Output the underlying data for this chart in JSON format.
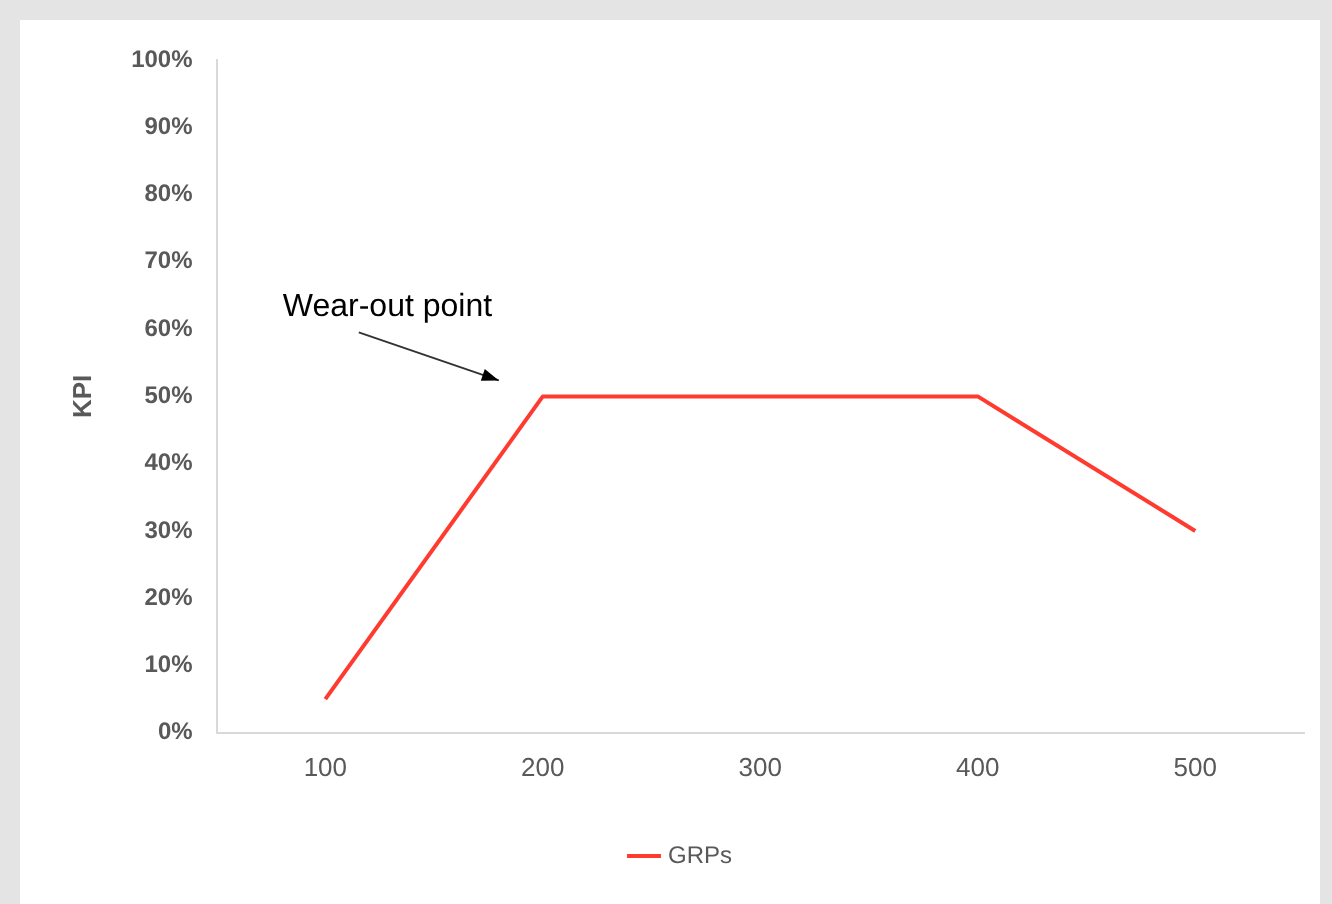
{
  "chart_data": {
    "type": "line",
    "ylabel": "KPI",
    "categories": [
      "100",
      "200",
      "300",
      "400",
      "500"
    ],
    "series": [
      {
        "name": "GRPs",
        "color": "#ff3b30",
        "values": [
          5,
          50,
          50,
          50,
          30
        ]
      }
    ],
    "ylim": [
      0,
      100
    ],
    "yticks": [
      {
        "value": 0,
        "label": "0%"
      },
      {
        "value": 10,
        "label": "10%"
      },
      {
        "value": 20,
        "label": "20%"
      },
      {
        "value": 30,
        "label": "30%"
      },
      {
        "value": 40,
        "label": "40%"
      },
      {
        "value": 50,
        "label": "50%"
      },
      {
        "value": 60,
        "label": "60%"
      },
      {
        "value": 70,
        "label": "70%"
      },
      {
        "value": 80,
        "label": "80%"
      },
      {
        "value": 90,
        "label": "90%"
      },
      {
        "value": 100,
        "label": "100%"
      }
    ],
    "grid": false,
    "legend": "bottom",
    "marker": "none",
    "line_style": "solid",
    "annotations": [
      {
        "text": "Wear-out point",
        "x": "200",
        "y": 50
      }
    ]
  }
}
